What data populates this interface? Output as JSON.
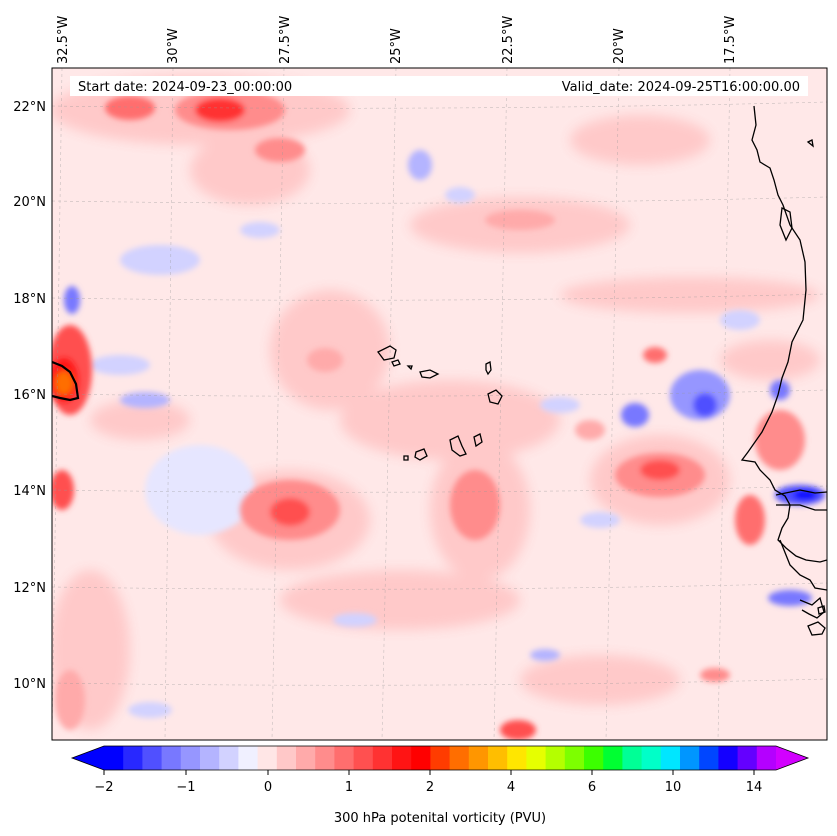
{
  "header": {
    "start_date": "Start date: 2024-09-23_00:00:00",
    "valid_date": "Valid_date: 2024-09-25T16:00:00.00"
  },
  "axes": {
    "lon_labels": [
      "32.5°W",
      "30°W",
      "27.5°W",
      "25°W",
      "22.5°W",
      "20°W",
      "17.5°W"
    ],
    "lat_labels": [
      "22°N",
      "20°N",
      "18°N",
      "16°N",
      "14°N",
      "12°N",
      "10°N"
    ]
  },
  "colorbar": {
    "label": "300 hPa potenital vorticity (PVU)",
    "ticks": [
      "−2",
      "−1",
      "0",
      "1",
      "2",
      "4",
      "6",
      "10",
      "14"
    ],
    "colors": [
      "#0000ff",
      "#2828ff",
      "#5050ff",
      "#7878ff",
      "#9696ff",
      "#b4b4ff",
      "#d2d2ff",
      "#f0f0ff",
      "#ffe6e6",
      "#ffc8c8",
      "#ffaaaa",
      "#ff8c8c",
      "#ff6e6e",
      "#ff5050",
      "#ff3232",
      "#ff1414",
      "#ff0000",
      "#ff3c00",
      "#ff6e00",
      "#ff9600",
      "#ffbe00",
      "#ffe600",
      "#e6ff00",
      "#b4ff00",
      "#7dff00",
      "#3cff00",
      "#00ff32",
      "#00ff96",
      "#00ffc8",
      "#00e6ff",
      "#0096ff",
      "#0046ff",
      "#1400ff",
      "#6400ff",
      "#b400ff"
    ],
    "extend_low_color": "#0000ff",
    "extend_high_color": "#d200ff"
  },
  "map": {
    "lon_range": [
      -33.0,
      -15.0
    ],
    "lat_range": [
      9.0,
      23.0
    ],
    "background_color": "#ffe8e8"
  }
}
